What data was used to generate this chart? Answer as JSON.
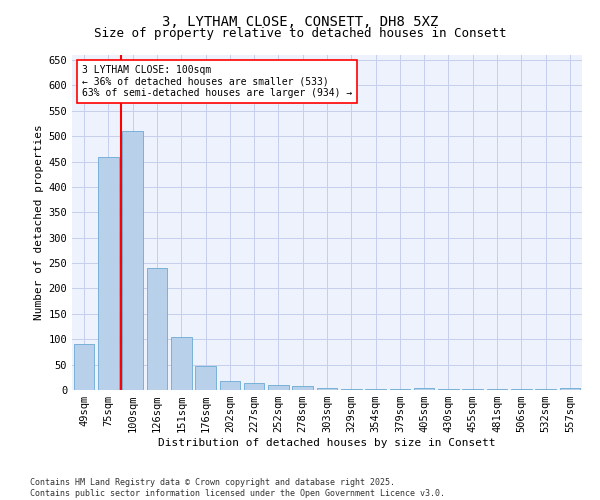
{
  "title1": "3, LYTHAM CLOSE, CONSETT, DH8 5XZ",
  "title2": "Size of property relative to detached houses in Consett",
  "xlabel": "Distribution of detached houses by size in Consett",
  "ylabel": "Number of detached properties",
  "categories": [
    "49sqm",
    "75sqm",
    "100sqm",
    "126sqm",
    "151sqm",
    "176sqm",
    "202sqm",
    "227sqm",
    "252sqm",
    "278sqm",
    "303sqm",
    "329sqm",
    "354sqm",
    "379sqm",
    "405sqm",
    "430sqm",
    "455sqm",
    "481sqm",
    "506sqm",
    "532sqm",
    "557sqm"
  ],
  "values": [
    90,
    460,
    510,
    240,
    105,
    48,
    18,
    13,
    10,
    8,
    4,
    2,
    1,
    1,
    3,
    1,
    1,
    1,
    1,
    1,
    3
  ],
  "bar_color": "#b8d0ea",
  "bar_edgecolor": "#6aaad4",
  "red_line_index": 2,
  "annotation_text": "3 LYTHAM CLOSE: 100sqm\n← 36% of detached houses are smaller (533)\n63% of semi-detached houses are larger (934) →",
  "ylim": [
    0,
    660
  ],
  "yticks": [
    0,
    50,
    100,
    150,
    200,
    250,
    300,
    350,
    400,
    450,
    500,
    550,
    600,
    650
  ],
  "footer1": "Contains HM Land Registry data © Crown copyright and database right 2025.",
  "footer2": "Contains public sector information licensed under the Open Government Licence v3.0.",
  "bg_color": "#edf2fc",
  "grid_color": "#c5ceeb",
  "title1_fontsize": 10,
  "title2_fontsize": 9,
  "axis_label_fontsize": 8,
  "tick_fontsize": 7.5,
  "annotation_fontsize": 7,
  "footer_fontsize": 6
}
